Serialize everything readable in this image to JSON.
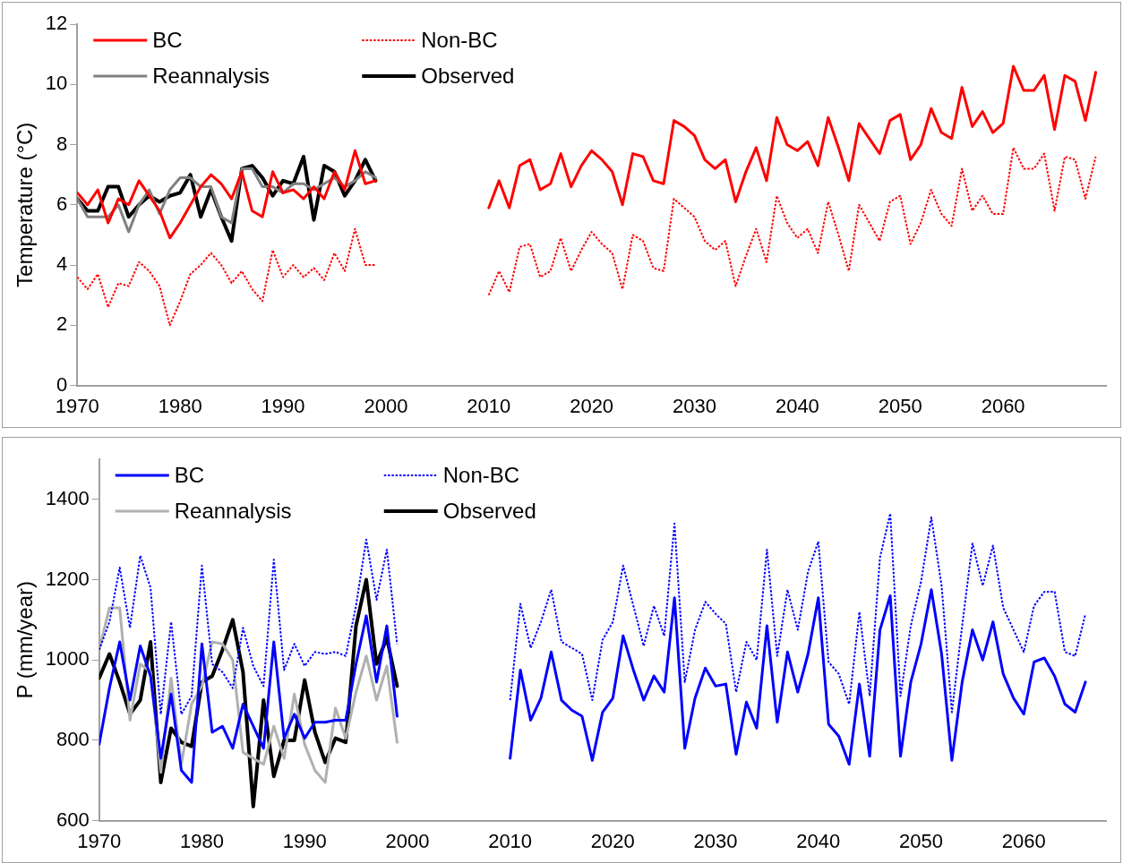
{
  "chart_data": [
    {
      "type": "line",
      "ylabel": "Temperature (°C)",
      "xlim": [
        1970,
        2070
      ],
      "xticks": [
        1970,
        1980,
        1990,
        2000,
        2010,
        2020,
        2030,
        2040,
        2050,
        2060
      ],
      "ylim": [
        0,
        12
      ],
      "yticks": [
        0,
        2,
        4,
        6,
        8,
        10,
        12
      ],
      "grid": false,
      "legend": "top left",
      "marker": "none",
      "x": [
        1970,
        1971,
        1972,
        1973,
        1974,
        1975,
        1976,
        1977,
        1978,
        1979,
        1980,
        1981,
        1982,
        1983,
        1984,
        1985,
        1986,
        1987,
        1988,
        1989,
        1990,
        1991,
        1992,
        1993,
        1994,
        1995,
        1996,
        1997,
        1998,
        1999,
        2000,
        2001,
        2002,
        2003,
        2004,
        2005,
        2006,
        2007,
        2008,
        2009,
        2010,
        2011,
        2012,
        2013,
        2014,
        2015,
        2016,
        2017,
        2018,
        2019,
        2020,
        2021,
        2022,
        2023,
        2024,
        2025,
        2026,
        2027,
        2028,
        2029,
        2030,
        2031,
        2032,
        2033,
        2034,
        2035,
        2036,
        2037,
        2038,
        2039,
        2040,
        2041,
        2042,
        2043,
        2044,
        2045,
        2046,
        2047,
        2048,
        2049,
        2050,
        2051,
        2052,
        2053,
        2054,
        2055,
        2056,
        2057,
        2058,
        2059,
        2060,
        2061,
        2062,
        2063,
        2064,
        2065,
        2066,
        2067,
        2068,
        2069
      ],
      "series": [
        {
          "name": "BC",
          "color": "#ff0000",
          "line_style": "solid",
          "values": [
            6.4,
            6.0,
            6.5,
            5.4,
            6.2,
            6.0,
            6.8,
            6.3,
            5.8,
            4.9,
            5.4,
            6.0,
            6.6,
            7.0,
            6.7,
            6.2,
            7.1,
            5.8,
            5.6,
            7.1,
            6.4,
            6.5,
            6.2,
            6.6,
            6.2,
            7.1,
            6.5,
            7.8,
            6.7,
            6.8,
            null,
            null,
            null,
            null,
            null,
            null,
            null,
            null,
            null,
            null,
            5.9,
            6.8,
            5.9,
            7.3,
            7.5,
            6.5,
            6.7,
            7.7,
            6.6,
            7.3,
            7.8,
            7.5,
            7.1,
            6.0,
            7.7,
            7.6,
            6.8,
            6.7,
            8.8,
            8.6,
            8.3,
            7.5,
            7.2,
            7.5,
            6.1,
            7.1,
            7.9,
            6.8,
            8.9,
            8.0,
            7.8,
            8.1,
            7.3,
            8.9,
            7.9,
            6.8,
            8.7,
            8.2,
            7.7,
            8.8,
            9.0,
            7.5,
            8.0,
            9.2,
            8.4,
            8.2,
            9.9,
            8.6,
            9.1,
            8.4,
            8.7,
            10.6,
            9.8,
            9.8,
            10.3,
            8.5,
            10.3,
            10.1,
            8.8,
            10.4
          ]
        },
        {
          "name": "Non-BC",
          "color": "#ff0000",
          "line_style": "dotted",
          "values": [
            3.6,
            3.2,
            3.7,
            2.6,
            3.4,
            3.3,
            4.1,
            3.8,
            3.3,
            2.0,
            2.8,
            3.7,
            4.0,
            4.4,
            4.0,
            3.4,
            3.8,
            3.2,
            2.8,
            4.5,
            3.6,
            4.0,
            3.6,
            3.9,
            3.5,
            4.4,
            3.8,
            5.2,
            4.0,
            4.0,
            null,
            null,
            null,
            null,
            null,
            null,
            null,
            null,
            null,
            null,
            3.0,
            3.8,
            3.1,
            4.6,
            4.7,
            3.6,
            3.8,
            4.9,
            3.8,
            4.5,
            5.1,
            4.7,
            4.4,
            3.2,
            5.0,
            4.8,
            3.9,
            3.8,
            6.2,
            5.9,
            5.6,
            4.8,
            4.5,
            4.8,
            3.3,
            4.3,
            5.2,
            4.1,
            6.3,
            5.4,
            4.9,
            5.2,
            4.4,
            6.1,
            5.0,
            3.8,
            6.0,
            5.4,
            4.8,
            6.1,
            6.3,
            4.7,
            5.4,
            6.5,
            5.7,
            5.3,
            7.2,
            5.8,
            6.3,
            5.7,
            5.7,
            7.9,
            7.2,
            7.2,
            7.7,
            5.8,
            7.6,
            7.5,
            6.2,
            7.6
          ]
        },
        {
          "name": "Reannalysis",
          "color": "#808080",
          "line_style": "solid",
          "values": [
            6.2,
            5.6,
            5.6,
            5.6,
            6.0,
            5.1,
            6.0,
            6.5,
            5.7,
            6.5,
            6.9,
            6.9,
            6.6,
            6.6,
            5.6,
            5.4,
            7.2,
            7.2,
            6.6,
            6.6,
            6.4,
            6.7,
            6.7,
            6.5,
            6.7,
            6.9,
            6.6,
            6.8,
            7.1,
            6.9,
            null,
            null,
            null,
            null,
            null,
            null,
            null,
            null,
            null,
            null,
            null,
            null,
            null,
            null,
            null,
            null,
            null,
            null,
            null,
            null,
            null,
            null,
            null,
            null,
            null,
            null,
            null,
            null,
            null,
            null,
            null,
            null,
            null,
            null,
            null,
            null,
            null,
            null,
            null,
            null,
            null,
            null,
            null,
            null,
            null,
            null,
            null,
            null,
            null,
            null,
            null,
            null,
            null,
            null,
            null,
            null,
            null,
            null,
            null,
            null,
            null,
            null,
            null,
            null,
            null,
            null,
            null,
            null,
            null,
            null
          ]
        },
        {
          "name": "Observed",
          "color": "#000000",
          "line_style": "solid",
          "values": [
            6.2,
            5.8,
            5.8,
            6.6,
            6.6,
            5.6,
            6.0,
            6.3,
            6.1,
            6.3,
            6.4,
            7.0,
            5.6,
            6.5,
            5.6,
            4.8,
            7.2,
            7.3,
            6.9,
            6.3,
            6.8,
            6.7,
            7.6,
            5.5,
            7.3,
            7.1,
            6.3,
            6.8,
            7.5,
            6.8,
            null,
            null,
            null,
            null,
            null,
            null,
            null,
            null,
            null,
            null,
            null,
            null,
            null,
            null,
            null,
            null,
            null,
            null,
            null,
            null,
            null,
            null,
            null,
            null,
            null,
            null,
            null,
            null,
            null,
            null,
            null,
            null,
            null,
            null,
            null,
            null,
            null,
            null,
            null,
            null,
            null,
            null,
            null,
            null,
            null,
            null,
            null,
            null,
            null,
            null,
            null,
            null,
            null,
            null,
            null,
            null,
            null,
            null,
            null,
            null,
            null,
            null,
            null,
            null,
            null,
            null,
            null,
            null,
            null,
            null
          ]
        }
      ]
    },
    {
      "type": "line",
      "ylabel": "P (mm/year)",
      "xlim": [
        1970,
        2068
      ],
      "xticks": [
        1970,
        1980,
        1990,
        2000,
        2010,
        2020,
        2030,
        2040,
        2050,
        2060
      ],
      "ylim": [
        600,
        1500
      ],
      "yticks": [
        600,
        800,
        1000,
        1200,
        1400
      ],
      "grid": false,
      "legend": "top left",
      "marker": "none",
      "x": [
        1970,
        1971,
        1972,
        1973,
        1974,
        1975,
        1976,
        1977,
        1978,
        1979,
        1980,
        1981,
        1982,
        1983,
        1984,
        1985,
        1986,
        1987,
        1988,
        1989,
        1990,
        1991,
        1992,
        1993,
        1994,
        1995,
        1996,
        1997,
        1998,
        1999,
        2000,
        2001,
        2002,
        2003,
        2004,
        2005,
        2006,
        2007,
        2008,
        2009,
        2010,
        2011,
        2012,
        2013,
        2014,
        2015,
        2016,
        2017,
        2018,
        2019,
        2020,
        2021,
        2022,
        2023,
        2024,
        2025,
        2026,
        2027,
        2028,
        2029,
        2030,
        2031,
        2032,
        2033,
        2034,
        2035,
        2036,
        2037,
        2038,
        2039,
        2040,
        2041,
        2042,
        2043,
        2044,
        2045,
        2046,
        2047,
        2048,
        2049,
        2050,
        2051,
        2052,
        2053,
        2054,
        2055,
        2056,
        2057,
        2058,
        2059,
        2060,
        2061,
        2062,
        2063,
        2064,
        2065,
        2066
      ],
      "series": [
        {
          "name": "BC",
          "color": "#0000ff",
          "line_style": "solid",
          "values": [
            790,
            930,
            1045,
            900,
            1035,
            960,
            755,
            915,
            725,
            695,
            1040,
            820,
            835,
            780,
            890,
            835,
            780,
            1045,
            805,
            865,
            805,
            845,
            845,
            850,
            850,
            990,
            1110,
            945,
            1085,
            860,
            null,
            null,
            null,
            null,
            null,
            null,
            null,
            null,
            null,
            null,
            755,
            975,
            850,
            905,
            1020,
            900,
            875,
            860,
            750,
            870,
            905,
            1060,
            975,
            900,
            960,
            920,
            1155,
            780,
            905,
            980,
            935,
            940,
            765,
            895,
            830,
            1085,
            845,
            1020,
            920,
            1015,
            1155,
            840,
            810,
            740,
            940,
            760,
            1075,
            1160,
            760,
            945,
            1040,
            1175,
            1015,
            750,
            945,
            1075,
            1000,
            1095,
            965,
            905,
            865,
            995,
            1005,
            960,
            890,
            870,
            945
          ]
        },
        {
          "name": "Non-BC",
          "color": "#0000ff",
          "line_style": "dotted",
          "values": [
            1025,
            1095,
            1230,
            1080,
            1260,
            1180,
            865,
            1095,
            865,
            910,
            1235,
            990,
            970,
            930,
            1080,
            985,
            935,
            1250,
            975,
            1040,
            985,
            1020,
            1015,
            1020,
            1010,
            1135,
            1300,
            1150,
            1275,
            1040,
            null,
            null,
            null,
            null,
            null,
            null,
            null,
            null,
            null,
            null,
            900,
            1140,
            1030,
            1095,
            1175,
            1045,
            1030,
            1015,
            900,
            1050,
            1095,
            1235,
            1135,
            1035,
            1135,
            1060,
            1340,
            945,
            1075,
            1145,
            1115,
            1090,
            920,
            1045,
            1000,
            1275,
            1010,
            1175,
            1075,
            1220,
            1295,
            995,
            965,
            890,
            1120,
            910,
            1255,
            1365,
            910,
            1085,
            1195,
            1355,
            1185,
            870,
            1085,
            1290,
            1185,
            1285,
            1130,
            1075,
            1020,
            1135,
            1170,
            1170,
            1020,
            1010,
            1115
          ]
        },
        {
          "name": "Reannalysis",
          "color": "#b0b0b0",
          "line_style": "solid",
          "values": [
            1025,
            1130,
            1130,
            850,
            990,
            970,
            720,
            955,
            740,
            890,
            935,
            1045,
            1040,
            1000,
            770,
            755,
            740,
            835,
            755,
            915,
            790,
            725,
            695,
            880,
            805,
            920,
            1010,
            900,
            985,
            795,
            null,
            null,
            null,
            null,
            null,
            null,
            null,
            null,
            null,
            null,
            null,
            null,
            null,
            null,
            null,
            null,
            null,
            null,
            null,
            null,
            null,
            null,
            null,
            null,
            null,
            null,
            null,
            null,
            null,
            null,
            null,
            null,
            null,
            null,
            null,
            null,
            null,
            null,
            null,
            null,
            null,
            null,
            null,
            null,
            null,
            null,
            null,
            null,
            null,
            null,
            null,
            null,
            null,
            null,
            null,
            null,
            null,
            null,
            null,
            null,
            null,
            null,
            null,
            null,
            null,
            null,
            null
          ]
        },
        {
          "name": "Observed",
          "color": "#000000",
          "line_style": "solid",
          "values": [
            955,
            1015,
            945,
            865,
            900,
            1045,
            695,
            830,
            795,
            785,
            945,
            960,
            1025,
            1100,
            970,
            635,
            900,
            710,
            800,
            800,
            950,
            820,
            745,
            805,
            795,
            1085,
            1200,
            990,
            1055,
            935,
            null,
            null,
            null,
            null,
            null,
            null,
            null,
            null,
            null,
            null,
            null,
            null,
            null,
            null,
            null,
            null,
            null,
            null,
            null,
            null,
            null,
            null,
            null,
            null,
            null,
            null,
            null,
            null,
            null,
            null,
            null,
            null,
            null,
            null,
            null,
            null,
            null,
            null,
            null,
            null,
            null,
            null,
            null,
            null,
            null,
            null,
            null,
            null,
            null,
            null,
            null,
            null,
            null,
            null,
            null,
            null,
            null,
            null,
            null,
            null,
            null,
            null,
            null,
            null,
            null,
            null,
            null
          ]
        }
      ]
    }
  ]
}
